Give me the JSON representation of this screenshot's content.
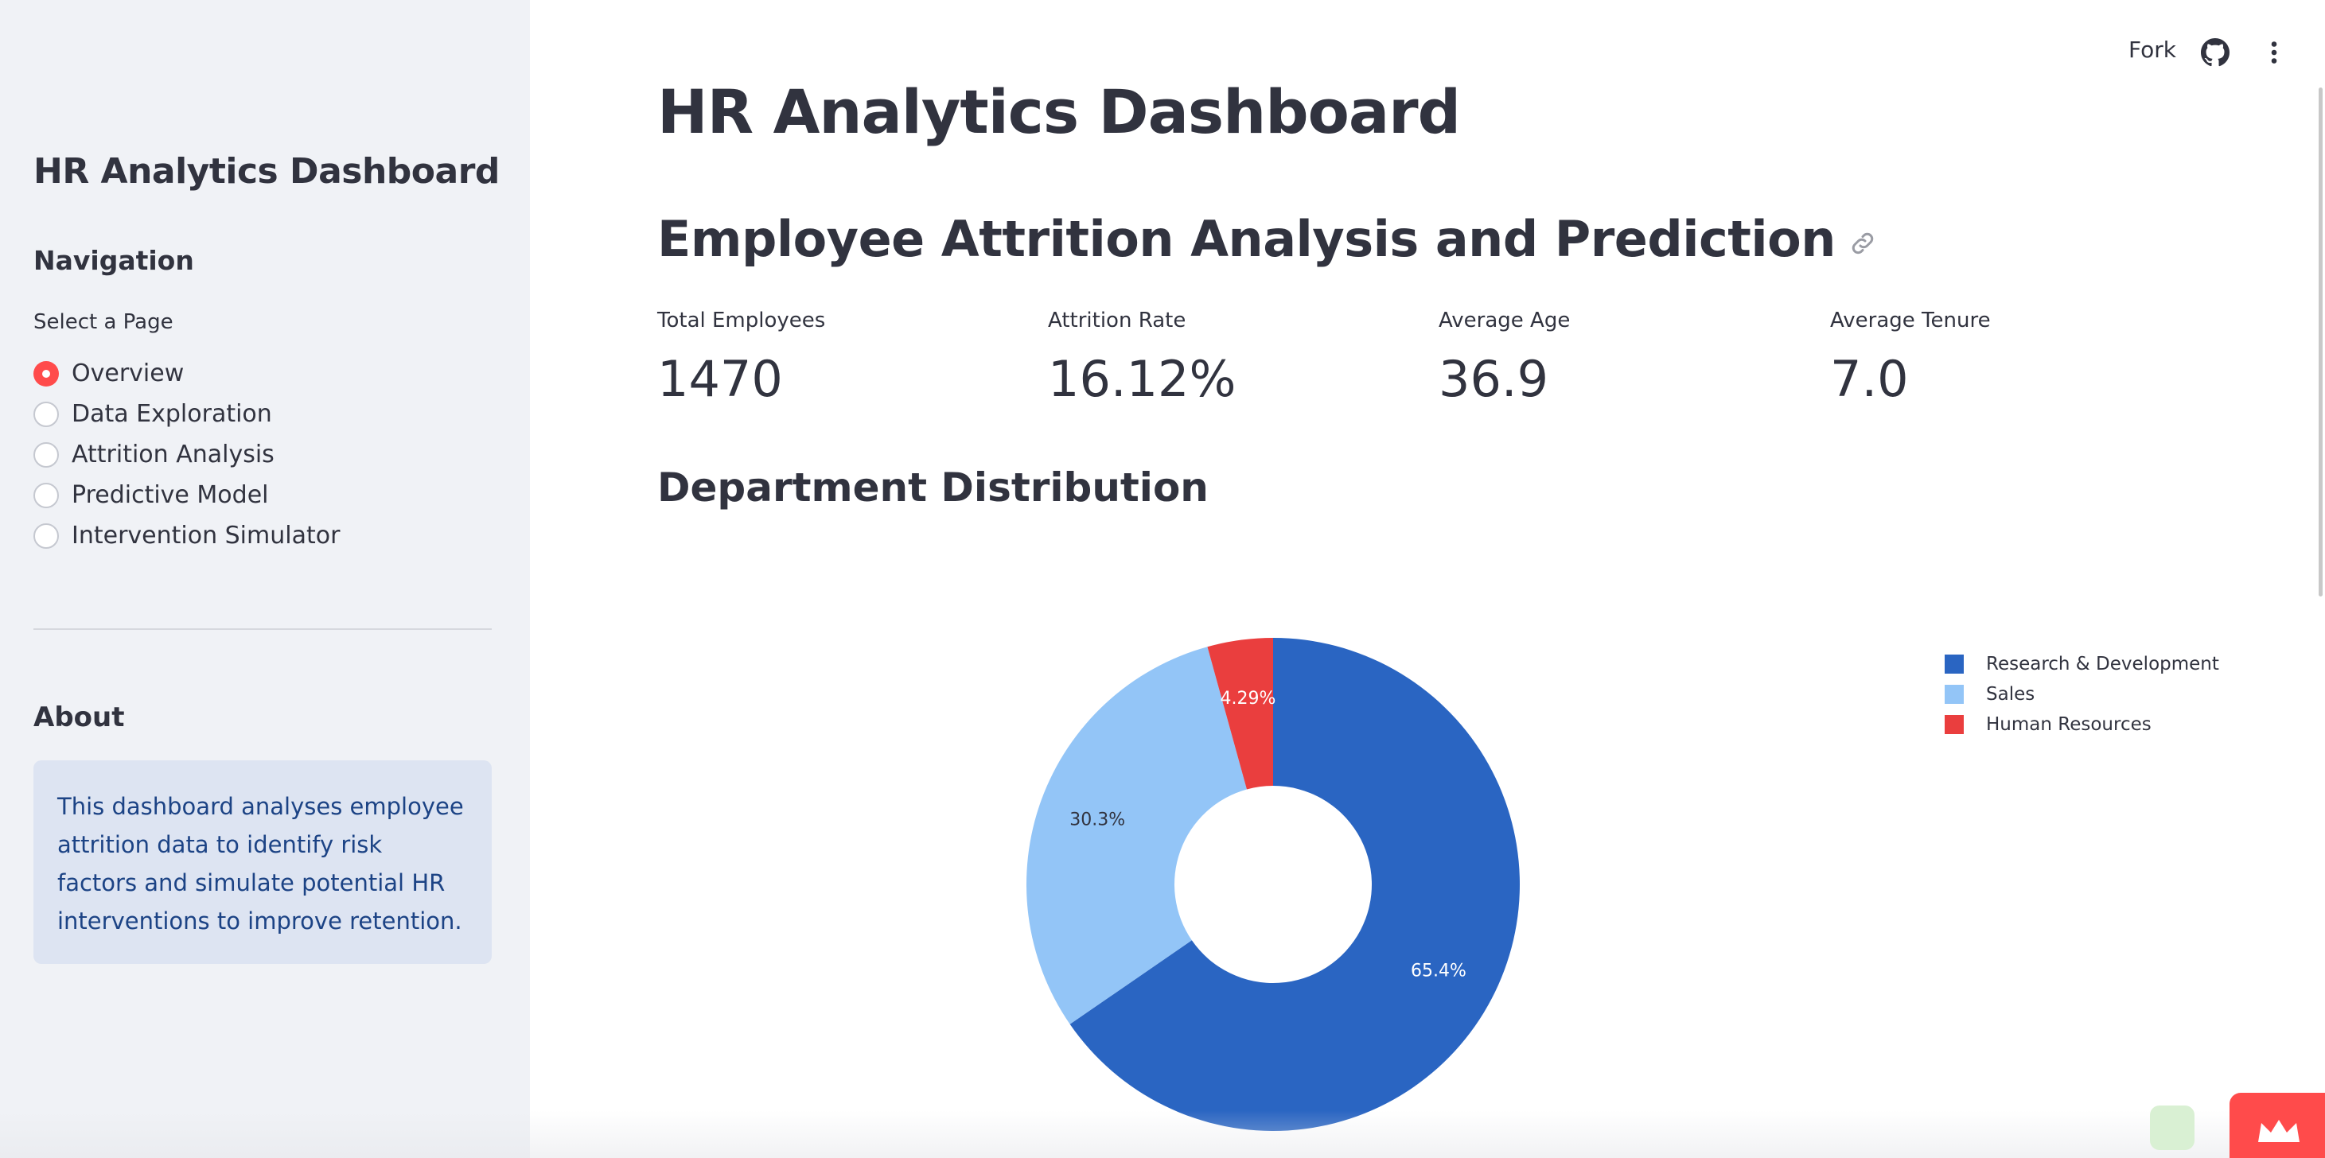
{
  "sidebar": {
    "title": "HR Analytics Dashboard",
    "navigation_heading": "Navigation",
    "select_label": "Select a Page",
    "pages": [
      {
        "label": "Overview",
        "selected": true
      },
      {
        "label": "Data Exploration",
        "selected": false
      },
      {
        "label": "Attrition Analysis",
        "selected": false
      },
      {
        "label": "Predictive Model",
        "selected": false
      },
      {
        "label": "Intervention Simulator",
        "selected": false
      }
    ],
    "about_heading": "About",
    "about_text": "This dashboard analyses employee attrition data to identify risk factors and simulate potential HR interventions to improve retention."
  },
  "header": {
    "fork_label": "Fork",
    "github_icon": "github-icon",
    "menu_icon": "more-vertical-icon"
  },
  "main": {
    "title": "HR Analytics Dashboard",
    "subtitle": "Employee Attrition Analysis and Prediction",
    "link_icon": "link-icon",
    "metrics": [
      {
        "label": "Total Employees",
        "value": "1470"
      },
      {
        "label": "Attrition Rate",
        "value": "16.12%"
      },
      {
        "label": "Average Age",
        "value": "36.9"
      },
      {
        "label": "Average Tenure",
        "value": "7.0"
      }
    ],
    "section_title": "Department Distribution"
  },
  "colors": {
    "accent": "#ff4b4b",
    "sidebar_bg": "#f0f2f6",
    "info_bg": "#dde4f2",
    "info_text": "#1c4385"
  },
  "chart_data": {
    "type": "pie",
    "hole": 0.4,
    "categories": [
      "Research & Development",
      "Sales",
      "Human Resources"
    ],
    "values": [
      65.4,
      30.3,
      4.29
    ],
    "labels": [
      "65.4%",
      "30.3%",
      "4.29%"
    ],
    "colors": [
      "#2a65c2",
      "#93c5f7",
      "#ea3e3e"
    ],
    "label_colors": [
      "#ffffff",
      "#31333f",
      "#ffffff"
    ],
    "legend_position": "top-right"
  }
}
